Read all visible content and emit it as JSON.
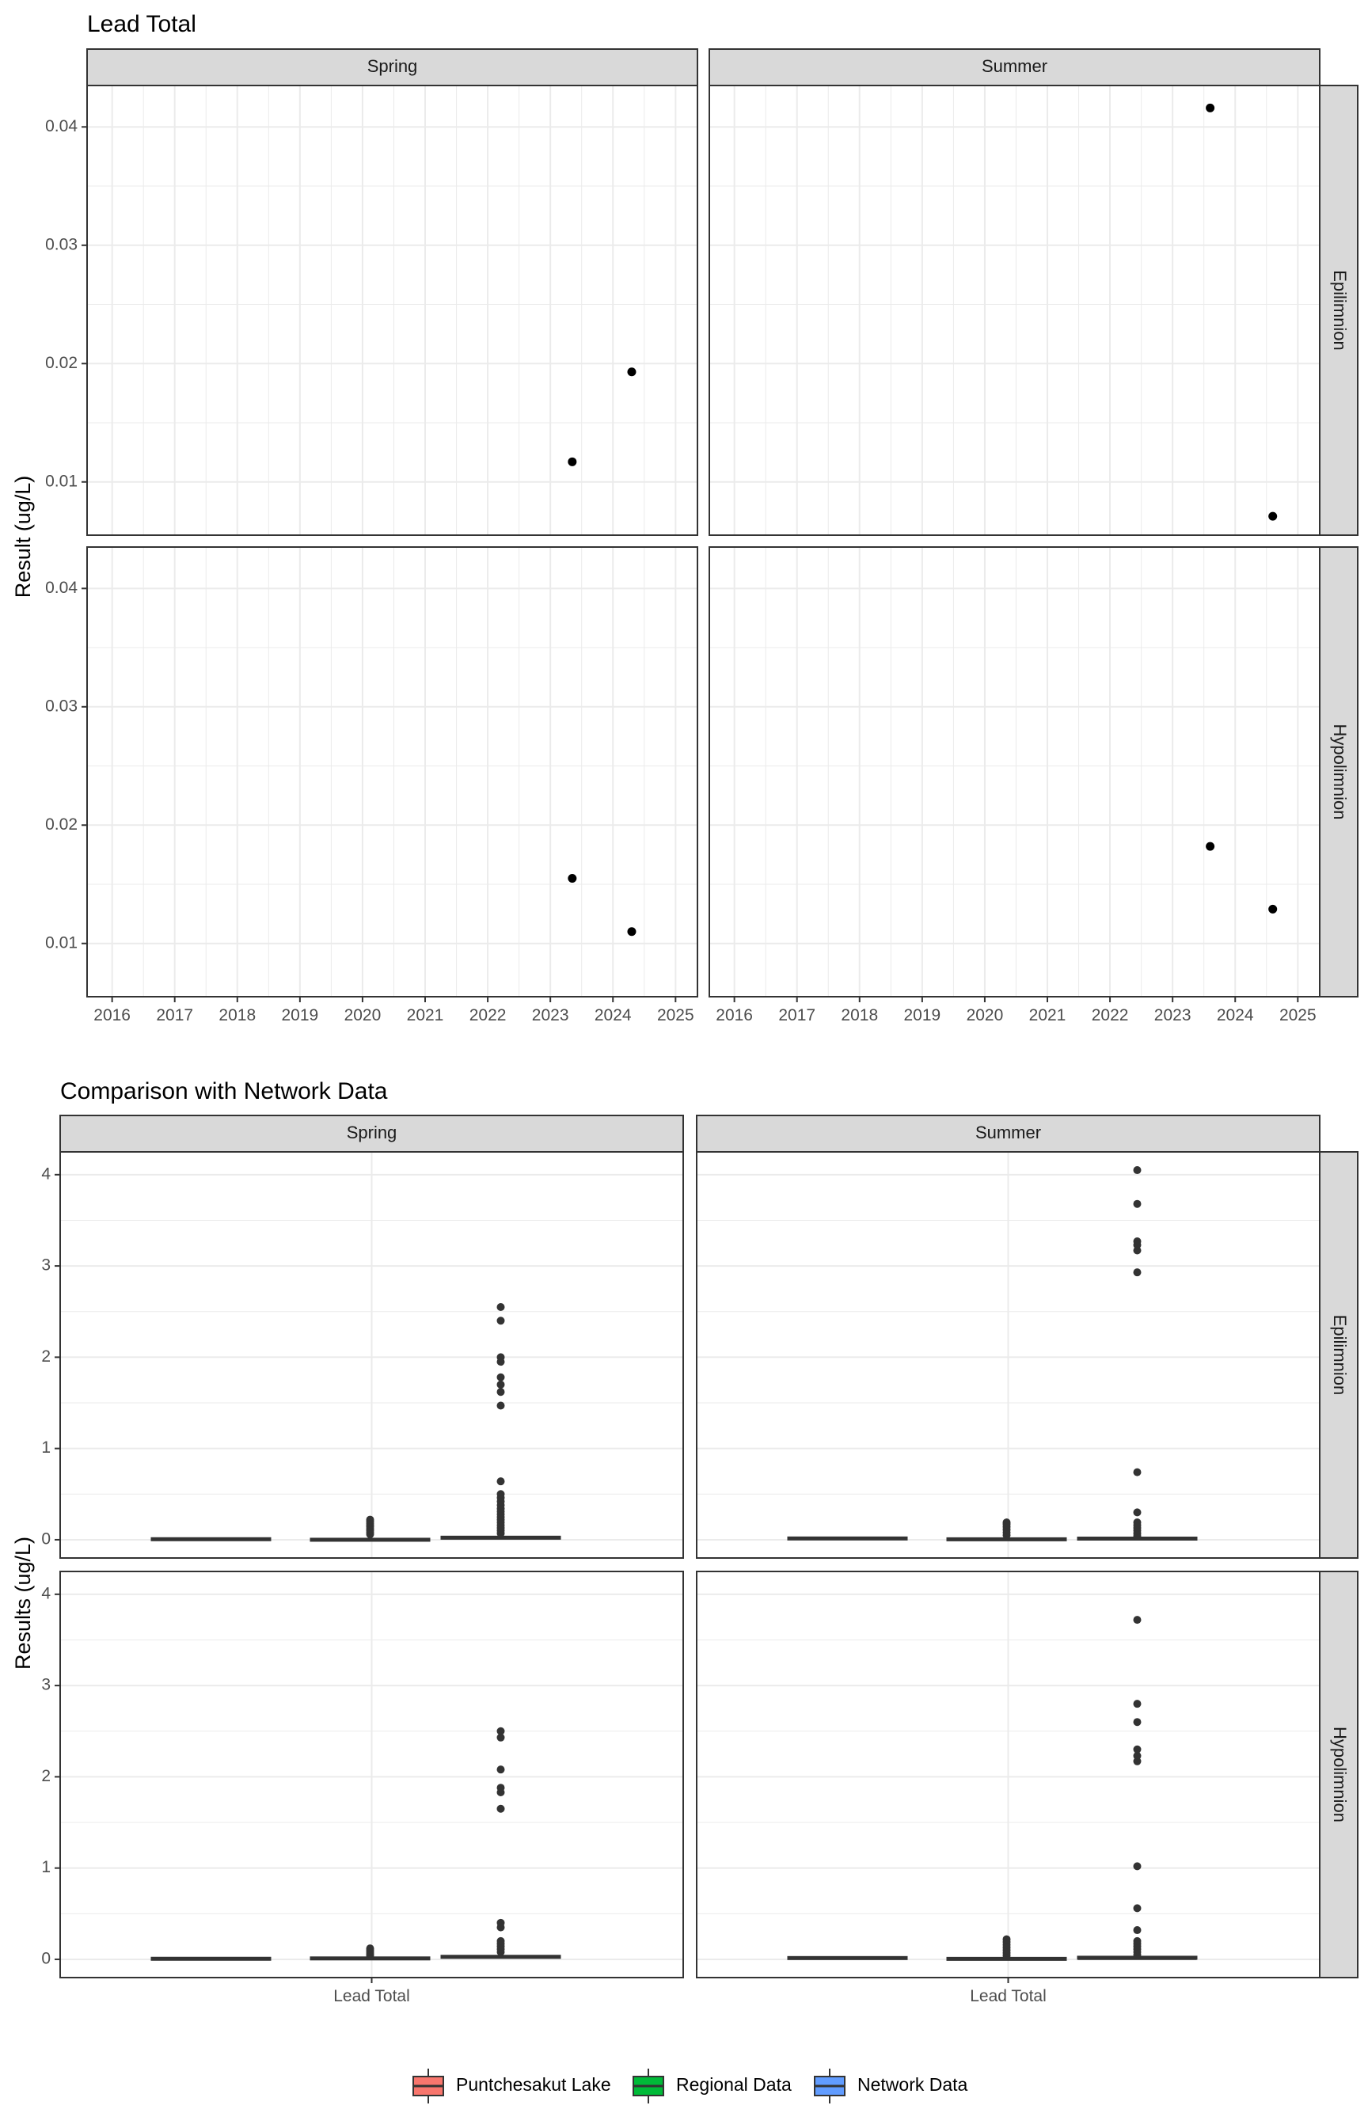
{
  "colors": {
    "puntchesakut": "#F8766D",
    "regional": "#00BA38",
    "network": "#619CFF",
    "point": "#000000",
    "outlier": "#333333",
    "strip_fill": "#D9D9D9",
    "grid": "#EBEBEB"
  },
  "chart_data": [
    {
      "type": "scatter",
      "title": "Lead Total",
      "xlabel": "",
      "ylabel": "Result (ug/L)",
      "xlim": [
        2015.6,
        2025.35
      ],
      "ylim": [
        0.0055,
        0.0435
      ],
      "xticks": [
        "2016",
        "2017",
        "2018",
        "2019",
        "2020",
        "2021",
        "2022",
        "2023",
        "2024",
        "2025"
      ],
      "yticks": [
        "0.01",
        "0.02",
        "0.03",
        "0.04"
      ],
      "facet_cols": [
        "Spring",
        "Summer"
      ],
      "facet_rows": [
        "Epilimnion",
        "Hypolimnion"
      ],
      "panels": [
        {
          "col": "Spring",
          "row": "Epilimnion",
          "points": [
            {
              "x": 2023.35,
              "y": 0.0117
            },
            {
              "x": 2024.3,
              "y": 0.0193
            }
          ]
        },
        {
          "col": "Summer",
          "row": "Epilimnion",
          "points": [
            {
              "x": 2023.6,
              "y": 0.0416
            },
            {
              "x": 2024.6,
              "y": 0.0071
            }
          ]
        },
        {
          "col": "Spring",
          "row": "Hypolimnion",
          "points": [
            {
              "x": 2023.35,
              "y": 0.0155
            },
            {
              "x": 2024.3,
              "y": 0.011
            }
          ]
        },
        {
          "col": "Summer",
          "row": "Hypolimnion",
          "points": [
            {
              "x": 2023.6,
              "y": 0.0182
            },
            {
              "x": 2024.6,
              "y": 0.0129
            }
          ]
        }
      ]
    },
    {
      "type": "box",
      "title": "Comparison with Network Data",
      "xlabel": "",
      "ylabel": "Results (ug/L)",
      "categories": [
        "Lead Total"
      ],
      "ylim": [
        -0.2,
        4.25
      ],
      "yticks": [
        "0",
        "1",
        "2",
        "3",
        "4"
      ],
      "facet_cols": [
        "Spring",
        "Summer"
      ],
      "facet_rows": [
        "Epilimnion",
        "Hypolimnion"
      ],
      "legend": {
        "position": "bottom",
        "entries": [
          "Puntchesakut Lake",
          "Regional Data",
          "Network Data"
        ]
      },
      "panels": [
        {
          "col": "Spring",
          "row": "Epilimnion",
          "series": [
            {
              "name": "Puntchesakut Lake",
              "median": 0.005,
              "q1": 0.002,
              "q3": 0.01,
              "outliers": []
            },
            {
              "name": "Regional Data",
              "median": 0.0,
              "q1": -0.005,
              "q3": 0.005,
              "outliers": [
                0.06,
                0.08,
                0.1,
                0.12,
                0.14,
                0.16,
                0.18,
                0.2,
                0.22
              ]
            },
            {
              "name": "Network Data",
              "median": 0.02,
              "q1": 0.01,
              "q3": 0.035,
              "outliers": [
                0.07,
                0.1,
                0.13,
                0.16,
                0.19,
                0.22,
                0.25,
                0.28,
                0.31,
                0.34,
                0.38,
                0.42,
                0.46,
                0.5,
                0.64,
                1.47,
                1.62,
                1.7,
                1.78,
                1.95,
                2.0,
                2.4,
                2.55
              ]
            }
          ]
        },
        {
          "col": "Summer",
          "row": "Epilimnion",
          "series": [
            {
              "name": "Puntchesakut Lake",
              "median": 0.015,
              "q1": 0.008,
              "q3": 0.02,
              "outliers": []
            },
            {
              "name": "Regional Data",
              "median": 0.005,
              "q1": 0.0,
              "q3": 0.01,
              "outliers": [
                0.05,
                0.08,
                0.11,
                0.14,
                0.17,
                0.19
              ]
            },
            {
              "name": "Network Data",
              "median": 0.01,
              "q1": 0.005,
              "q3": 0.02,
              "outliers": [
                0.04,
                0.07,
                0.1,
                0.13,
                0.16,
                0.19,
                0.3,
                0.74,
                2.93,
                3.17,
                3.23,
                3.27,
                3.68,
                4.05
              ]
            }
          ]
        },
        {
          "col": "Spring",
          "row": "Hypolimnion",
          "series": [
            {
              "name": "Puntchesakut Lake",
              "median": 0.005,
              "q1": 0.002,
              "q3": 0.01,
              "outliers": []
            },
            {
              "name": "Regional Data",
              "median": 0.01,
              "q1": 0.0,
              "q3": 0.02,
              "outliers": [
                0.04,
                0.06,
                0.08,
                0.1,
                0.12
              ]
            },
            {
              "name": "Network Data",
              "median": 0.025,
              "q1": 0.015,
              "q3": 0.04,
              "outliers": [
                0.08,
                0.11,
                0.14,
                0.17,
                0.2,
                0.35,
                0.4,
                1.65,
                1.83,
                1.88,
                2.08,
                2.43,
                2.5
              ]
            }
          ]
        },
        {
          "col": "Summer",
          "row": "Hypolimnion",
          "series": [
            {
              "name": "Puntchesakut Lake",
              "median": 0.015,
              "q1": 0.008,
              "q3": 0.02,
              "outliers": []
            },
            {
              "name": "Regional Data",
              "median": 0.005,
              "q1": 0.0,
              "q3": 0.01,
              "outliers": [
                0.04,
                0.07,
                0.1,
                0.13,
                0.16,
                0.19,
                0.22
              ]
            },
            {
              "name": "Network Data",
              "median": 0.01,
              "q1": 0.005,
              "q3": 0.03,
              "outliers": [
                0.05,
                0.08,
                0.11,
                0.14,
                0.17,
                0.2,
                0.32,
                0.56,
                1.02,
                2.17,
                2.23,
                2.3,
                2.6,
                2.8,
                3.72
              ]
            }
          ]
        }
      ]
    }
  ]
}
